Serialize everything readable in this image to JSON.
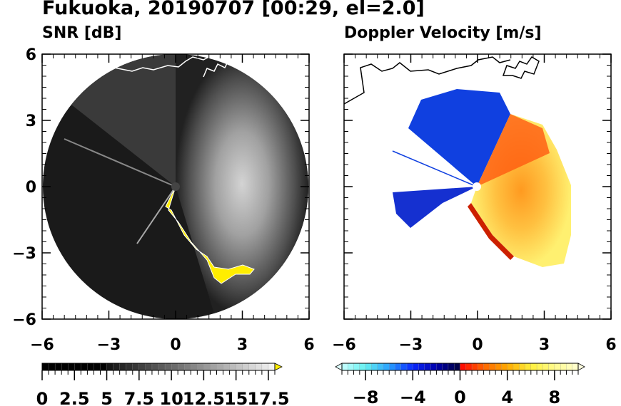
{
  "title": "Fukuoka, 20190707 [00:29, el=2.0]",
  "chart_data": [
    {
      "type": "heatmap",
      "subtitle": "SNR [dB]",
      "projection": "polar radar PPI",
      "xlim": [
        -6,
        6
      ],
      "ylim": [
        -6,
        6
      ],
      "xticks": [
        "−6",
        "−3",
        "0",
        "3",
        "6"
      ],
      "yticks": [
        "6",
        "3",
        "0",
        "−3",
        "−6"
      ],
      "colorbar": {
        "range": [
          0,
          18
        ],
        "tick_labels": [
          "0",
          "2.5",
          "5",
          "7.5",
          "10",
          "12.5",
          "15",
          "17.5"
        ],
        "tick_values": [
          0,
          2.5,
          5,
          7.5,
          10,
          12.5,
          15,
          17.5
        ],
        "extend": "max",
        "over_color": "#ffee00"
      }
    },
    {
      "type": "heatmap",
      "subtitle": "Doppler Velocity [m/s]",
      "projection": "polar radar PPI",
      "xlim": [
        -6,
        6
      ],
      "ylim": [
        -6,
        6
      ],
      "xticks": [
        "−6",
        "−3",
        "0",
        "3",
        "6"
      ],
      "colorbar": {
        "range": [
          -10,
          10
        ],
        "tick_labels": [
          "−8",
          "−4",
          "0",
          "4",
          "8"
        ],
        "tick_values": [
          -8,
          -4,
          0,
          4,
          8
        ],
        "extend": "both"
      }
    }
  ]
}
